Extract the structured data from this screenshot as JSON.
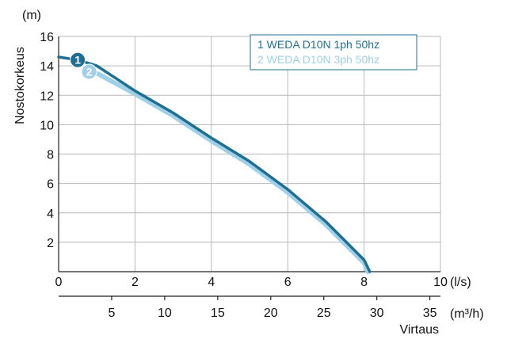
{
  "chart_data": {
    "type": "line",
    "ylabel": "Nostokorkeus",
    "y_unit": "(m)",
    "x_unit_primary": "(l/s)",
    "x_unit_secondary": "(m³/h)",
    "xlabel": "Virtaus",
    "xlim": [
      0,
      10
    ],
    "ylim": [
      0,
      16
    ],
    "x_secondary_lim": [
      0,
      36
    ],
    "x_ticks": [
      "0",
      "2",
      "4",
      "6",
      "8",
      "10"
    ],
    "x_tick_values": [
      0,
      2,
      4,
      6,
      8,
      10
    ],
    "x_secondary_ticks": [
      "5",
      "10",
      "15",
      "20",
      "25",
      "30",
      "35"
    ],
    "x_secondary_tick_values": [
      5,
      10,
      15,
      20,
      25,
      30,
      35
    ],
    "y_ticks": [
      "2",
      "4",
      "6",
      "8",
      "10",
      "12",
      "14",
      "16"
    ],
    "y_tick_values": [
      2,
      4,
      6,
      8,
      10,
      12,
      14,
      16
    ],
    "grid": true,
    "legend_position": "top-right",
    "series": [
      {
        "name": "1 WEDA D10N 1ph 50hz",
        "marker": "1",
        "color": "#1f6f93",
        "x": [
          0,
          0.5,
          1,
          2,
          3,
          4,
          5,
          6,
          7,
          8,
          8.15
        ],
        "y": [
          14.6,
          14.4,
          14.0,
          12.3,
          10.8,
          9.1,
          7.5,
          5.6,
          3.4,
          0.8,
          0
        ]
      },
      {
        "name": "2 WEDA D10N 3ph 50hz",
        "marker": "2",
        "color": "#9fd0e8",
        "x": [
          0.8,
          1,
          2,
          3,
          4,
          5,
          6,
          7,
          8,
          8.1
        ],
        "y": [
          13.6,
          13.5,
          12.1,
          10.6,
          8.9,
          7.3,
          5.4,
          3.2,
          0.6,
          0
        ]
      }
    ]
  }
}
